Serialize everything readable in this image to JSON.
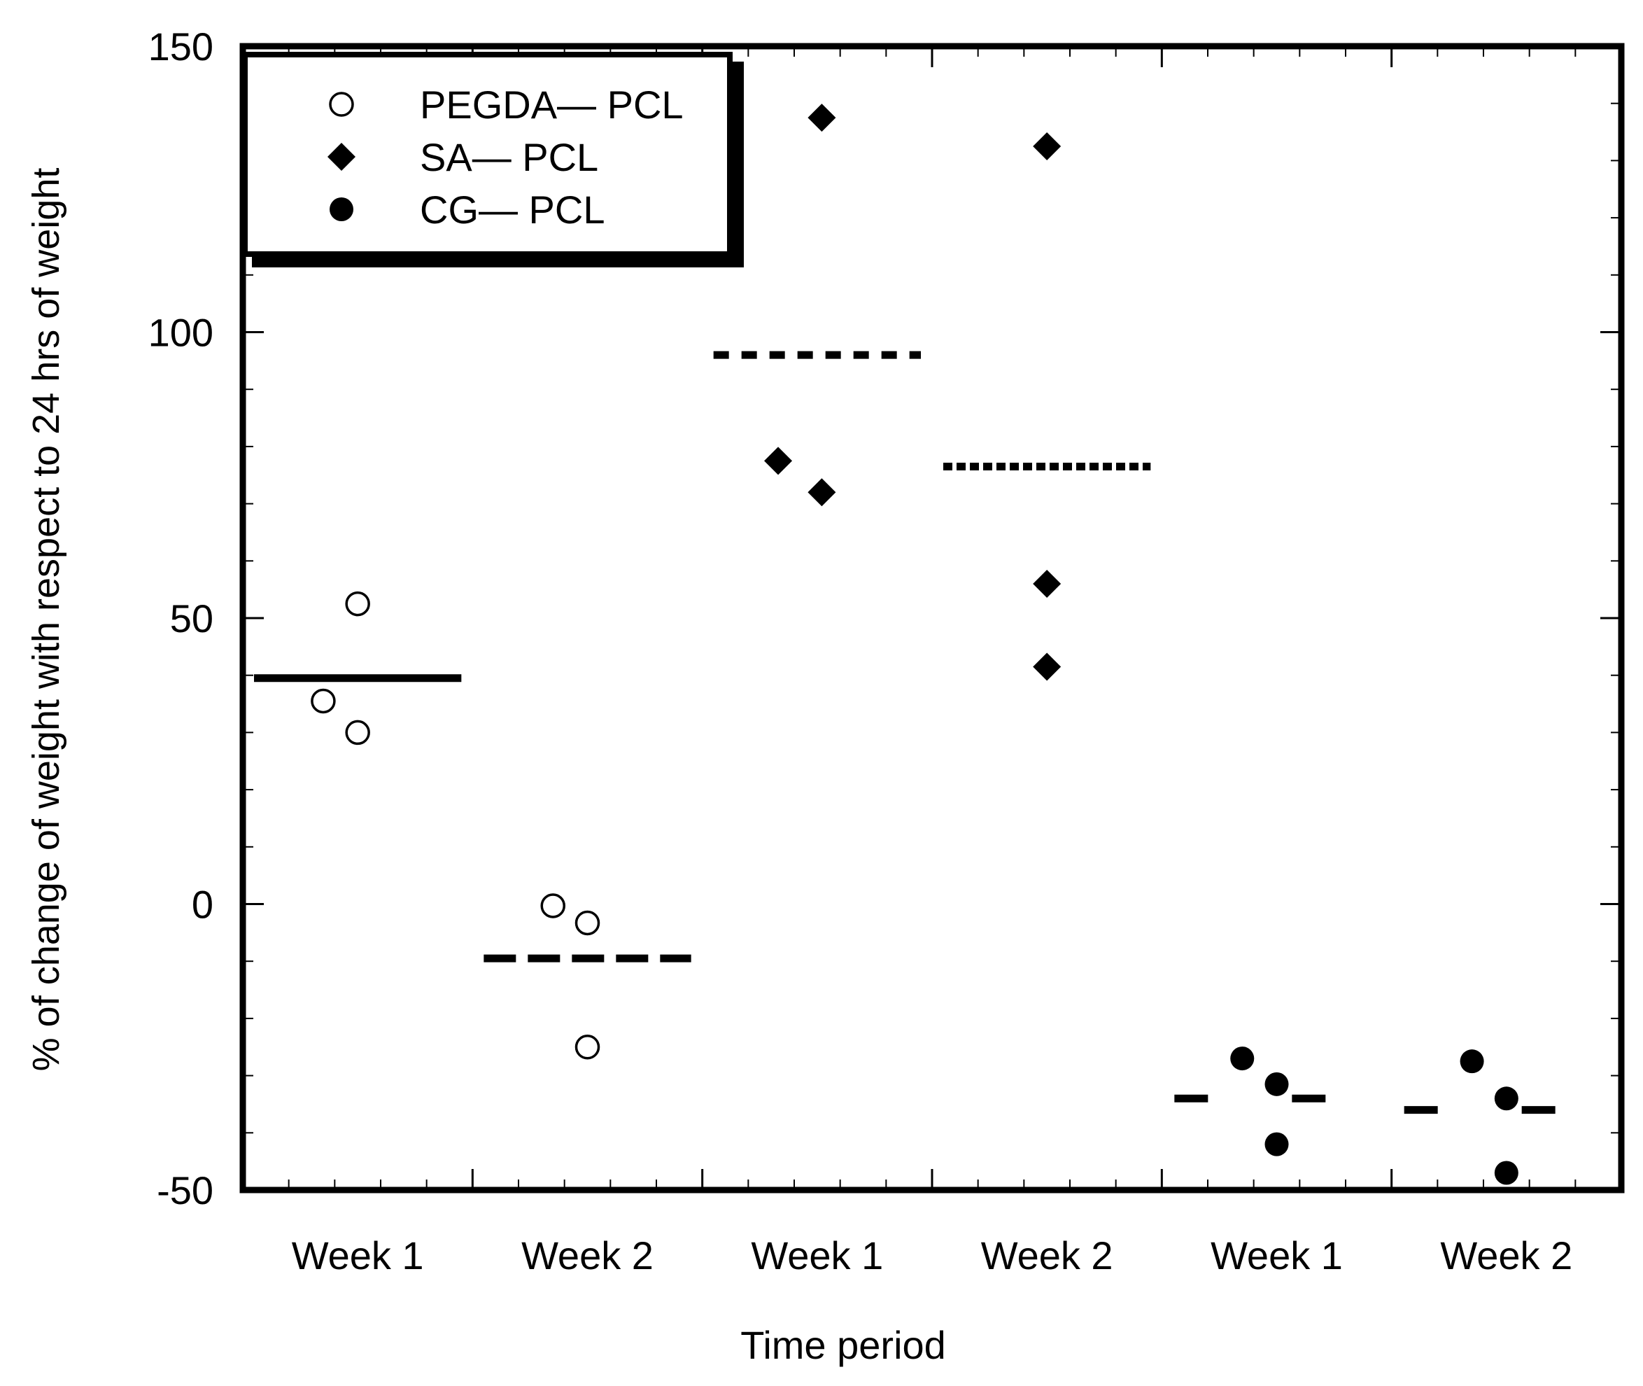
{
  "chart_data": {
    "type": "scatter",
    "title": "",
    "xlabel": "Time period",
    "ylabel": "% of change of weight with respect to 24 hrs of weight",
    "ylim": [
      -50,
      150
    ],
    "yticks": [
      -50,
      0,
      50,
      100,
      150
    ],
    "categories": [
      "Week 1",
      "Week 2",
      "Week 1",
      "Week 2",
      "Week 1",
      "Week 2"
    ],
    "legend_position": "top-left",
    "series": [
      {
        "name": "PEGDA— PCL",
        "marker": "open-circle",
        "points": [
          {
            "category_index": 0,
            "offset": -0.15,
            "y": 35.5
          },
          {
            "category_index": 0,
            "offset": 0.0,
            "y": 52.5
          },
          {
            "category_index": 0,
            "offset": 0.0,
            "y": 30.0
          },
          {
            "category_index": 1,
            "offset": -0.15,
            "y": -0.3
          },
          {
            "category_index": 1,
            "offset": 0.0,
            "y": -3.3
          },
          {
            "category_index": 1,
            "offset": 0.0,
            "y": -25.0
          }
        ]
      },
      {
        "name": "SA— PCL",
        "marker": "filled-diamond",
        "points": [
          {
            "category_index": 2,
            "offset": 0.02,
            "y": 137.5
          },
          {
            "category_index": 2,
            "offset": -0.17,
            "y": 77.5
          },
          {
            "category_index": 2,
            "offset": 0.02,
            "y": 72.0
          },
          {
            "category_index": 3,
            "offset": 0.0,
            "y": 132.5
          },
          {
            "category_index": 3,
            "offset": 0.0,
            "y": 56.0
          },
          {
            "category_index": 3,
            "offset": 0.0,
            "y": 41.5
          }
        ]
      },
      {
        "name": "CG— PCL",
        "marker": "filled-circle",
        "points": [
          {
            "category_index": 4,
            "offset": -0.15,
            "y": -27.0
          },
          {
            "category_index": 4,
            "offset": 0.0,
            "y": -31.5
          },
          {
            "category_index": 4,
            "offset": 0.0,
            "y": -42.0
          },
          {
            "category_index": 5,
            "offset": -0.15,
            "y": -27.5
          },
          {
            "category_index": 5,
            "offset": 0.0,
            "y": -34.0
          },
          {
            "category_index": 5,
            "offset": 0.0,
            "y": -47.0
          }
        ]
      }
    ],
    "mean_lines": [
      {
        "category_index": 0,
        "y": 39.5,
        "style": "solid"
      },
      {
        "category_index": 1,
        "y": -9.5,
        "style": "dashed"
      },
      {
        "category_index": 2,
        "y": 96.0,
        "style": "dotted"
      },
      {
        "category_index": 3,
        "y": 76.5,
        "style": "dense-dotted"
      },
      {
        "category_index": 4,
        "y": -34.0,
        "style": "long-dash"
      },
      {
        "category_index": 5,
        "y": -36.0,
        "style": "long-dash"
      }
    ]
  }
}
